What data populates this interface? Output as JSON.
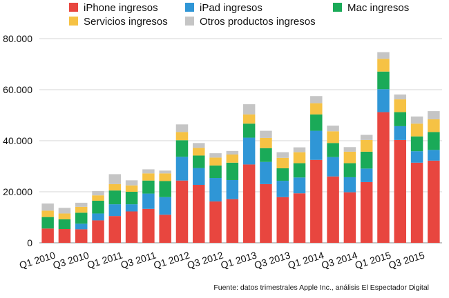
{
  "chart_data": {
    "type": "bar",
    "stacked": true,
    "ylim": [
      0,
      80000
    ],
    "yticks": [
      0,
      20000,
      40000,
      60000,
      80000
    ],
    "ytick_labels": [
      "0",
      "20.000",
      "40.000",
      "60.000",
      "80.000"
    ],
    "grid": true,
    "legend_position": "top",
    "categories": [
      "Q1 2010",
      "Q2 2010",
      "Q3 2010",
      "Q4 2010",
      "Q1 2011",
      "Q2 2011",
      "Q3 2011",
      "Q4 2011",
      "Q1 2012",
      "Q2 2012",
      "Q3 2012",
      "Q4 2012",
      "Q1 2013",
      "Q2 2013",
      "Q3 2013",
      "Q4 2013",
      "Q1 2014",
      "Q2 2014",
      "Q3 2014",
      "Q4 2014",
      "Q1 2015",
      "Q2 2015",
      "Q3 2015",
      "Q4 2015"
    ],
    "xtick_labels": [
      "Q1 2010",
      "",
      "Q3 2010",
      "",
      "Q1 2011",
      "",
      "Q3 2011",
      "",
      "Q1 2012",
      "",
      "Q3 2012",
      "",
      "Q1 2013",
      "",
      "Q3 2013",
      "",
      "Q1 2014",
      "",
      "Q3 2014",
      "",
      "Q1 2015",
      "",
      "Q3 2015",
      ""
    ],
    "series": [
      {
        "name": "iPhone ingresos",
        "color": "#e8463f",
        "values": [
          5600,
          5400,
          5300,
          8800,
          10500,
          12300,
          13300,
          11000,
          24400,
          22700,
          16200,
          17100,
          30700,
          23000,
          17900,
          19400,
          32500,
          26000,
          19800,
          23800,
          51200,
          40300,
          31400,
          32200
        ]
      },
      {
        "name": "iPad ingresos",
        "color": "#2f96d6",
        "values": [
          0,
          0,
          2200,
          2700,
          4600,
          2800,
          6000,
          6900,
          9300,
          6600,
          9200,
          7500,
          10500,
          8700,
          6400,
          6200,
          11400,
          7600,
          5900,
          5300,
          9000,
          5400,
          4500,
          4200
        ]
      },
      {
        "name": "Mac ingresos",
        "color": "#1aaa58",
        "values": [
          4500,
          3800,
          4300,
          5000,
          5400,
          4900,
          5100,
          6300,
          6500,
          4900,
          4900,
          6800,
          5500,
          5400,
          4900,
          5600,
          6400,
          5500,
          5500,
          6600,
          6900,
          5500,
          5800,
          7000
        ]
      },
      {
        "name": "Servicios ingresos",
        "color": "#f6c244",
        "values": [
          2500,
          2300,
          2300,
          2100,
          2500,
          2500,
          2800,
          3000,
          3200,
          3000,
          3100,
          3200,
          3600,
          4000,
          4100,
          4300,
          4400,
          4600,
          4500,
          4600,
          5000,
          5000,
          5000,
          5000
        ]
      },
      {
        "name": "Otros productos ingresos",
        "color": "#c5c5c5",
        "values": [
          2800,
          2200,
          1600,
          1700,
          3900,
          2000,
          1600,
          1100,
          3000,
          1900,
          1700,
          1400,
          4000,
          2800,
          2200,
          1900,
          2800,
          2200,
          1800,
          2000,
          2600,
          1900,
          2800,
          3200
        ]
      }
    ]
  },
  "source_note": "Fuente: datos trimestrales Apple Inc., análisis El Espectador Digital"
}
